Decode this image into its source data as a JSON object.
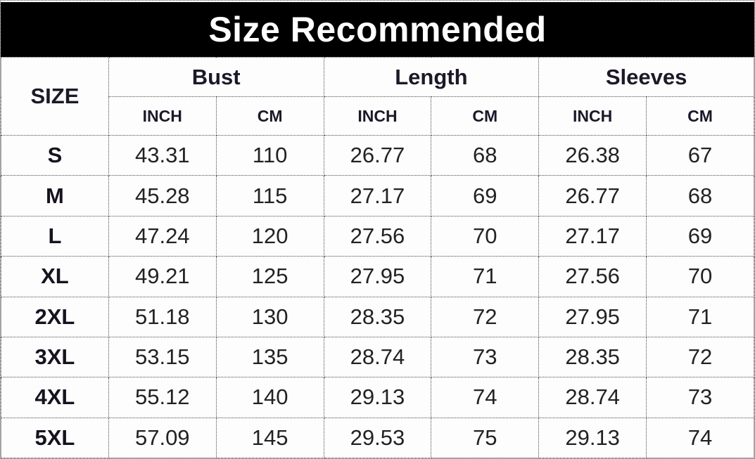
{
  "title": "Size Recommended",
  "table": {
    "corner_header": "SIZE",
    "group_headers": [
      "Bust",
      "Length",
      "Sleeves"
    ],
    "unit_headers": [
      "INCH",
      "CM",
      "INCH",
      "CM",
      "INCH",
      "CM"
    ],
    "rows": [
      {
        "size": "S",
        "values": [
          "43.31",
          "110",
          "26.77",
          "68",
          "26.38",
          "67"
        ]
      },
      {
        "size": "M",
        "values": [
          "45.28",
          "115",
          "27.17",
          "69",
          "26.77",
          "68"
        ]
      },
      {
        "size": "L",
        "values": [
          "47.24",
          "120",
          "27.56",
          "70",
          "27.17",
          "69"
        ]
      },
      {
        "size": "XL",
        "values": [
          "49.21",
          "125",
          "27.95",
          "71",
          "27.56",
          "70"
        ]
      },
      {
        "size": "2XL",
        "values": [
          "51.18",
          "130",
          "28.35",
          "72",
          "27.95",
          "71"
        ]
      },
      {
        "size": "3XL",
        "values": [
          "53.15",
          "135",
          "28.74",
          "73",
          "28.35",
          "72"
        ]
      },
      {
        "size": "4XL",
        "values": [
          "55.12",
          "140",
          "29.13",
          "74",
          "28.74",
          "73"
        ]
      },
      {
        "size": "5XL",
        "values": [
          "57.09",
          "145",
          "29.53",
          "75",
          "29.13",
          "74"
        ]
      }
    ]
  },
  "chart_data": {
    "type": "table",
    "title": "Size Recommended",
    "columns": [
      "SIZE",
      "Bust INCH",
      "Bust CM",
      "Length INCH",
      "Length CM",
      "Sleeves INCH",
      "Sleeves CM"
    ],
    "rows": [
      [
        "S",
        43.31,
        110,
        26.77,
        68,
        26.38,
        67
      ],
      [
        "M",
        45.28,
        115,
        27.17,
        69,
        26.77,
        68
      ],
      [
        "L",
        47.24,
        120,
        27.56,
        70,
        27.17,
        69
      ],
      [
        "XL",
        49.21,
        125,
        27.95,
        71,
        27.56,
        70
      ],
      [
        "2XL",
        51.18,
        130,
        28.35,
        72,
        27.95,
        71
      ],
      [
        "3XL",
        53.15,
        135,
        28.74,
        73,
        28.35,
        72
      ],
      [
        "4XL",
        55.12,
        140,
        29.13,
        74,
        28.74,
        73
      ],
      [
        "5XL",
        57.09,
        145,
        29.53,
        75,
        29.13,
        74
      ]
    ]
  },
  "colors": {
    "title_bar_bg": "#000000",
    "title_text": "#ffffff",
    "body_bg": "#fdfdfd",
    "border": "#4a4a4a",
    "header_text": "#1d1828",
    "value_text": "#222222"
  }
}
